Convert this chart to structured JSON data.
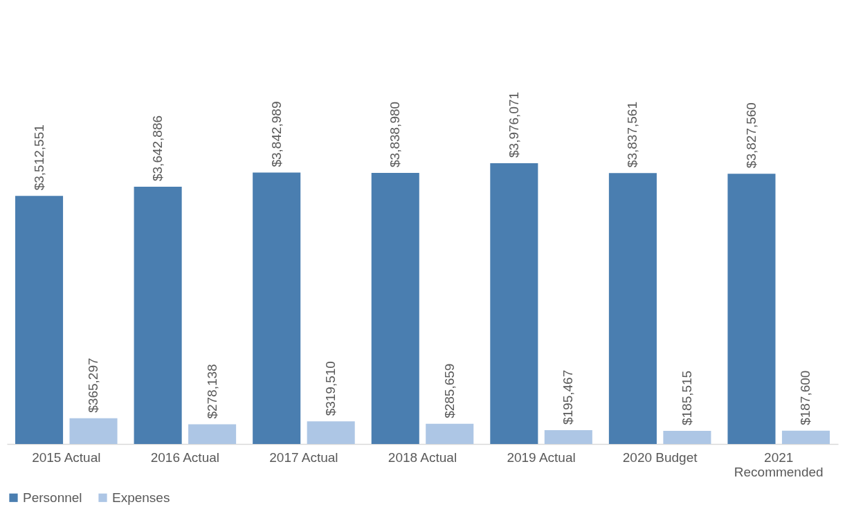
{
  "chart_data": {
    "type": "bar",
    "categories": [
      "2015 Actual",
      "2016 Actual",
      "2017 Actual",
      "2018 Actual",
      "2019 Actual",
      "2020 Budget",
      "2021 Recommended"
    ],
    "series": [
      {
        "name": "Personnel",
        "color": "#4a7eb0",
        "values": [
          3512551,
          3642886,
          3842989,
          3838980,
          3976071,
          3837561,
          3827560
        ],
        "value_labels": [
          "$3,512,551",
          "$3,642,886",
          "$3,842,989",
          "$3,838,980",
          "$3,976,071",
          "$3,837,561",
          "$3,827,560"
        ]
      },
      {
        "name": "Expenses",
        "color": "#adc6e5",
        "values": [
          365297,
          278138,
          319510,
          285659,
          195467,
          185515,
          187600
        ],
        "value_labels": [
          "$365,297",
          "$278,138",
          "$319,510",
          "$285,659",
          "$195,467",
          "$185,515",
          "$187,600"
        ]
      }
    ],
    "legend": "bottom"
  }
}
